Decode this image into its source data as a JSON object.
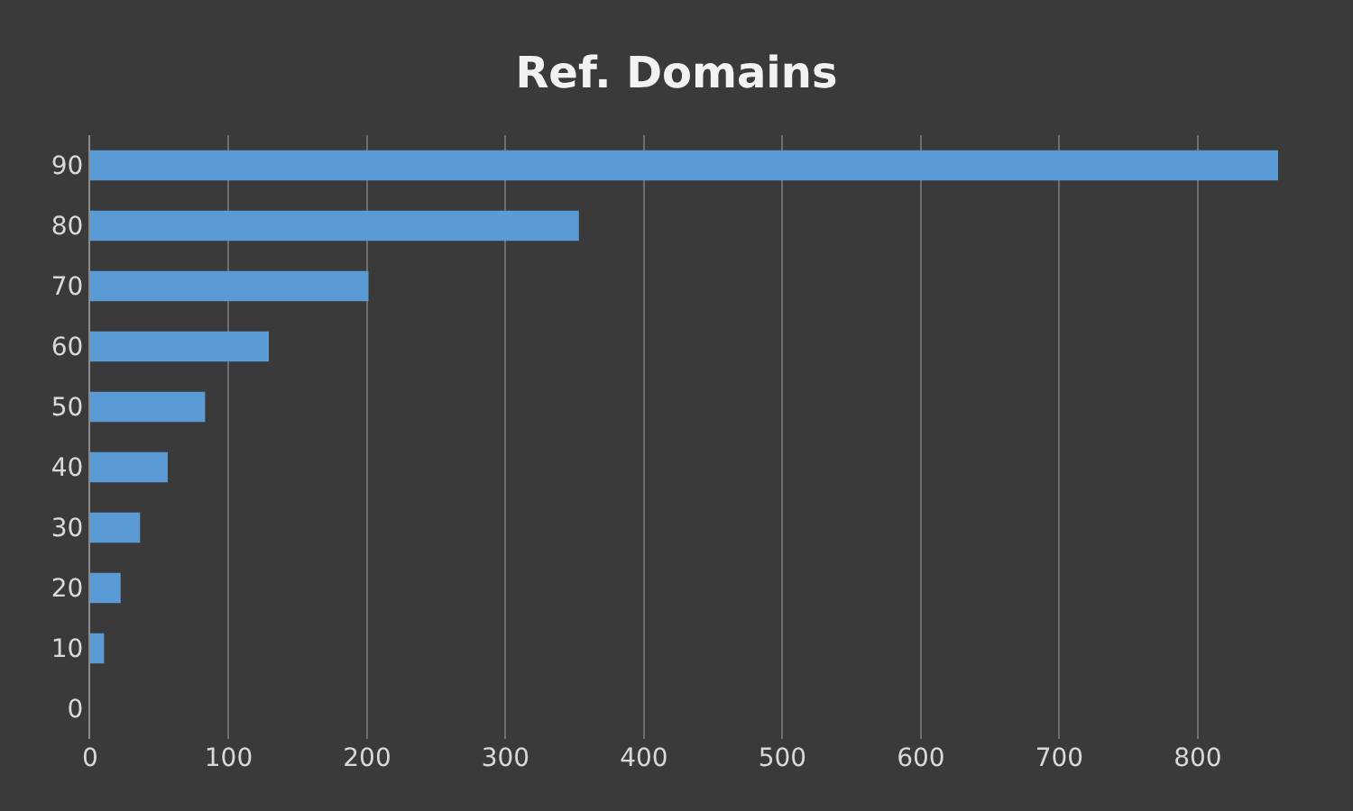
{
  "chart_data": {
    "type": "bar",
    "orientation": "horizontal",
    "title": "Ref. Domains",
    "categories": [
      "90",
      "80",
      "70",
      "60",
      "50",
      "40",
      "30",
      "20",
      "10",
      "0"
    ],
    "values": [
      858,
      353,
      201,
      129,
      83,
      56,
      36,
      22,
      10,
      0
    ],
    "color": "#5b9bd5",
    "xlim": [
      0,
      860
    ],
    "xticks": [
      0,
      100,
      200,
      300,
      400,
      500,
      600,
      700,
      800
    ],
    "grid": "x",
    "legend": false
  }
}
